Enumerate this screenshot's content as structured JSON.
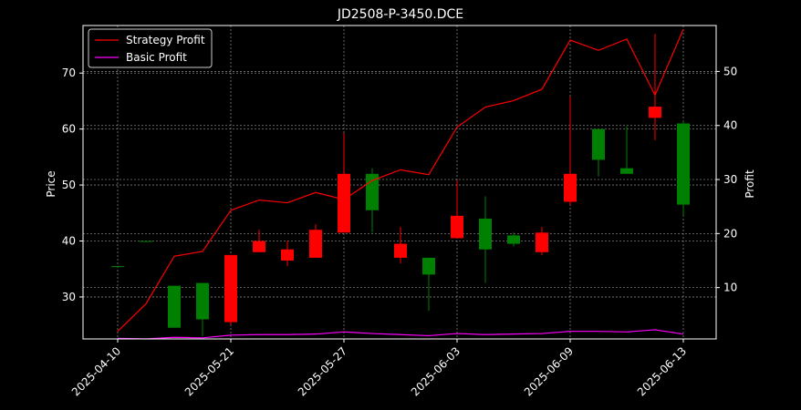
{
  "chart_data": {
    "type": "candlestick",
    "title": "JD2508-P-3450.DCE",
    "ylabel_left": "Price",
    "ylabel_right": "Profit",
    "ylim_left": [
      22.5,
      78.5
    ],
    "ylim_right": [
      0.5,
      58.5
    ],
    "yticks_left": [
      30,
      40,
      50,
      60,
      70
    ],
    "yticks_right": [
      10,
      20,
      30,
      40,
      50
    ],
    "legend_position": "top-left",
    "grid": true,
    "colors": {
      "background": "#000000",
      "up": "#008000",
      "down": "#ff0000",
      "strategy": "#ff0000",
      "basic": "#ff00ff",
      "grid": "#808080"
    },
    "x_tick_labels": [
      {
        "index": 0,
        "label": "2025-04-10"
      },
      {
        "index": 4,
        "label": "2025-05-21"
      },
      {
        "index": 8,
        "label": "2025-05-27"
      },
      {
        "index": 12,
        "label": "2025-06-03"
      },
      {
        "index": 16,
        "label": "2025-06-09"
      },
      {
        "index": 20,
        "label": "2025-06-13"
      }
    ],
    "candles": [
      {
        "i": 0,
        "open": 35.5,
        "close": 35.5,
        "high": 35.5,
        "low": 35.5
      },
      {
        "i": 1,
        "open": 40.0,
        "close": 40.0,
        "high": 40.0,
        "low": 40.0
      },
      {
        "i": 2,
        "open": 24.5,
        "close": 32.0,
        "high": 32.0,
        "low": 24.5
      },
      {
        "i": 3,
        "open": 26.0,
        "close": 32.5,
        "high": 32.5,
        "low": 23.0
      },
      {
        "i": 4,
        "open": 37.5,
        "close": 25.5,
        "high": 37.5,
        "low": 25.0
      },
      {
        "i": 5,
        "open": 40.0,
        "close": 38.0,
        "high": 42.0,
        "low": 38.0
      },
      {
        "i": 6,
        "open": 38.5,
        "close": 36.5,
        "high": 40.0,
        "low": 35.5
      },
      {
        "i": 7,
        "open": 42.0,
        "close": 37.0,
        "high": 43.0,
        "low": 37.0
      },
      {
        "i": 8,
        "open": 52.0,
        "close": 41.5,
        "high": 59.3,
        "low": 41.5
      },
      {
        "i": 9,
        "open": 45.5,
        "close": 52.0,
        "high": 53.0,
        "low": 41.5
      },
      {
        "i": 10,
        "open": 39.5,
        "close": 37.0,
        "high": 42.5,
        "low": 36.0
      },
      {
        "i": 11,
        "open": 34.0,
        "close": 37.0,
        "high": 37.0,
        "low": 27.5
      },
      {
        "i": 12,
        "open": 44.5,
        "close": 40.5,
        "high": 50.8,
        "low": 40.5
      },
      {
        "i": 13,
        "open": 38.5,
        "close": 44.0,
        "high": 48.0,
        "low": 32.5
      },
      {
        "i": 14,
        "open": 39.5,
        "close": 41.0,
        "high": 41.5,
        "low": 39.0
      },
      {
        "i": 15,
        "open": 41.5,
        "close": 38.0,
        "high": 42.5,
        "low": 37.5
      },
      {
        "i": 16,
        "open": 52.0,
        "close": 47.0,
        "high": 65.8,
        "low": 46.5
      },
      {
        "i": 17,
        "open": 54.5,
        "close": 60.0,
        "high": 60.0,
        "low": 51.5
      },
      {
        "i": 18,
        "open": 52.0,
        "close": 53.0,
        "high": 60.5,
        "low": 52.0
      },
      {
        "i": 19,
        "open": 64.0,
        "close": 62.0,
        "high": 77.0,
        "low": 58.0
      },
      {
        "i": 20,
        "open": 46.5,
        "close": 61.0,
        "high": 61.5,
        "low": 44.5
      }
    ],
    "series": [
      {
        "name": "Strategy Profit",
        "axis": "right",
        "values": [
          1.9,
          7.0,
          15.8,
          16.7,
          24.3,
          26.2,
          25.7,
          27.6,
          26.3,
          29.8,
          31.8,
          30.9,
          39.7,
          43.4,
          44.6,
          46.7,
          55.8,
          53.9,
          56.0,
          45.6,
          57.8
        ]
      },
      {
        "name": "Basic Profit",
        "axis": "right",
        "values": [
          0.6,
          0.5,
          0.8,
          0.7,
          1.2,
          1.3,
          1.3,
          1.4,
          1.8,
          1.5,
          1.3,
          1.1,
          1.5,
          1.3,
          1.4,
          1.5,
          1.9,
          1.9,
          1.8,
          2.2,
          1.4
        ]
      }
    ]
  }
}
